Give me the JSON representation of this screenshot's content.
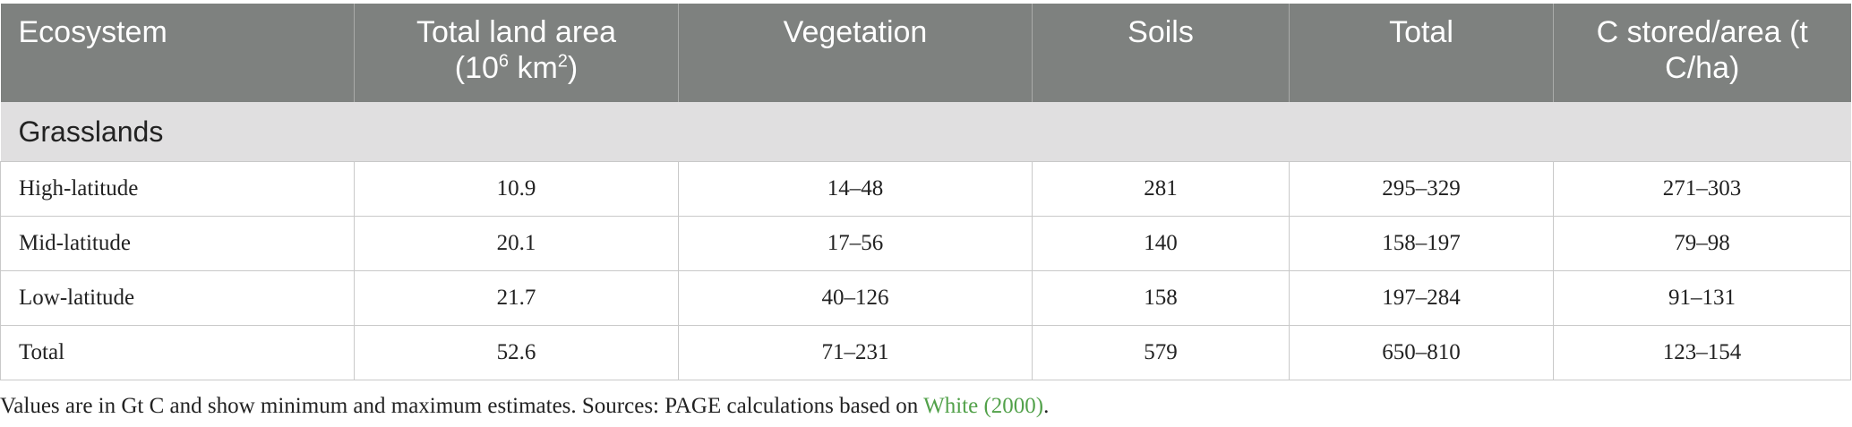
{
  "table": {
    "headers": {
      "ecosystem": "Ecosystem",
      "land_area_main": "Total land area",
      "land_area_unit_a": "(10",
      "land_area_exp1": "6",
      "land_area_unit_b": " km",
      "land_area_exp2": "2",
      "land_area_unit_c": ")",
      "vegetation": "Vegetation",
      "soils": "Soils",
      "total": "Total",
      "c_stored": "C stored/area (t C/ha)"
    },
    "group_label": "Grasslands",
    "rows": [
      {
        "ecosystem": "High-latitude",
        "land_area": "10.9",
        "vegetation": "14–48",
        "soils": "281",
        "total": "295–329",
        "c_stored": "271–303"
      },
      {
        "ecosystem": "Mid-latitude",
        "land_area": "20.1",
        "vegetation": "17–56",
        "soils": "140",
        "total": "158–197",
        "c_stored": "79–98"
      },
      {
        "ecosystem": "Low-latitude",
        "land_area": "21.7",
        "vegetation": "40–126",
        "soils": "158",
        "total": "197–284",
        "c_stored": "91–131"
      },
      {
        "ecosystem": "Total",
        "land_area": "52.6",
        "vegetation": "71–231",
        "soils": "579",
        "total": "650–810",
        "c_stored": "123–154"
      }
    ]
  },
  "footnote": {
    "text": "Values are in Gt C and show minimum and maximum estimates. Sources: PAGE calculations based on ",
    "link_text": "White (2000)",
    "end": "."
  },
  "colors": {
    "header_bg": "#7e817f",
    "group_bg": "#e0dfe0",
    "link": "#52a14a"
  }
}
